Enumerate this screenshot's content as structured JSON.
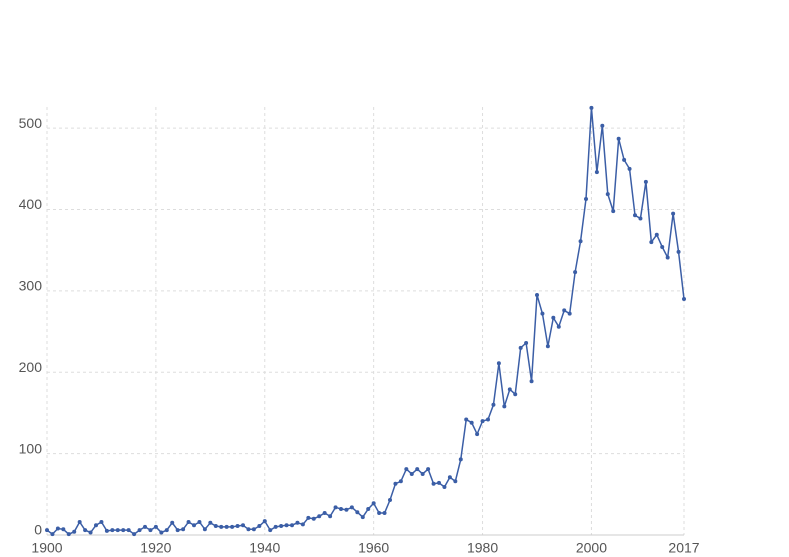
{
  "chart_data": {
    "type": "line",
    "color": "#3b5ea6",
    "grid": true,
    "x": [
      1900,
      1901,
      1902,
      1903,
      1904,
      1905,
      1906,
      1907,
      1908,
      1909,
      1910,
      1911,
      1912,
      1913,
      1914,
      1915,
      1916,
      1917,
      1918,
      1919,
      1920,
      1921,
      1922,
      1923,
      1924,
      1925,
      1926,
      1927,
      1928,
      1929,
      1930,
      1931,
      1932,
      1933,
      1934,
      1935,
      1936,
      1937,
      1938,
      1939,
      1940,
      1941,
      1942,
      1943,
      1944,
      1945,
      1946,
      1947,
      1948,
      1949,
      1950,
      1951,
      1952,
      1953,
      1954,
      1955,
      1956,
      1957,
      1958,
      1959,
      1960,
      1961,
      1962,
      1963,
      1964,
      1965,
      1966,
      1967,
      1968,
      1969,
      1970,
      1971,
      1972,
      1973,
      1974,
      1975,
      1976,
      1977,
      1978,
      1979,
      1980,
      1981,
      1982,
      1983,
      1984,
      1985,
      1986,
      1987,
      1988,
      1989,
      1990,
      1991,
      1992,
      1993,
      1994,
      1995,
      1996,
      1997,
      1998,
      1999,
      2000,
      2001,
      2002,
      2003,
      2004,
      2005,
      2006,
      2007,
      2008,
      2009,
      2010,
      2011,
      2012,
      2013,
      2014,
      2015,
      2016,
      2017
    ],
    "values": [
      6,
      1,
      8,
      7,
      1,
      4,
      16,
      6,
      3,
      12,
      16,
      5,
      6,
      6,
      6,
      6,
      1,
      6,
      10,
      6,
      10,
      3,
      6,
      15,
      6,
      7,
      16,
      12,
      16,
      7,
      15,
      11,
      10,
      10,
      10,
      11,
      12,
      7,
      7,
      11,
      17,
      6,
      10,
      11,
      12,
      12,
      15,
      13,
      21,
      20,
      23,
      27,
      23,
      34,
      32,
      31,
      34,
      28,
      22,
      32,
      39,
      27,
      27,
      43,
      63,
      66,
      81,
      75,
      81,
      75,
      81,
      63,
      64,
      59,
      71,
      66,
      93,
      142,
      138,
      124,
      140,
      142,
      160,
      211,
      158,
      179,
      173,
      230,
      236,
      189,
      295,
      272,
      232,
      267,
      256,
      276,
      272,
      323,
      361,
      413,
      525,
      446,
      503,
      419,
      398,
      487,
      461,
      450,
      393,
      389,
      434,
      360,
      369,
      354,
      341,
      395,
      348,
      290
    ],
    "xlim": [
      1900,
      2017
    ],
    "xticks": [
      1900,
      1920,
      1940,
      1960,
      1980,
      2000,
      2017
    ],
    "ylim": [
      0,
      526
    ],
    "yticks": [
      0,
      100,
      200,
      300,
      400,
      500
    ]
  }
}
